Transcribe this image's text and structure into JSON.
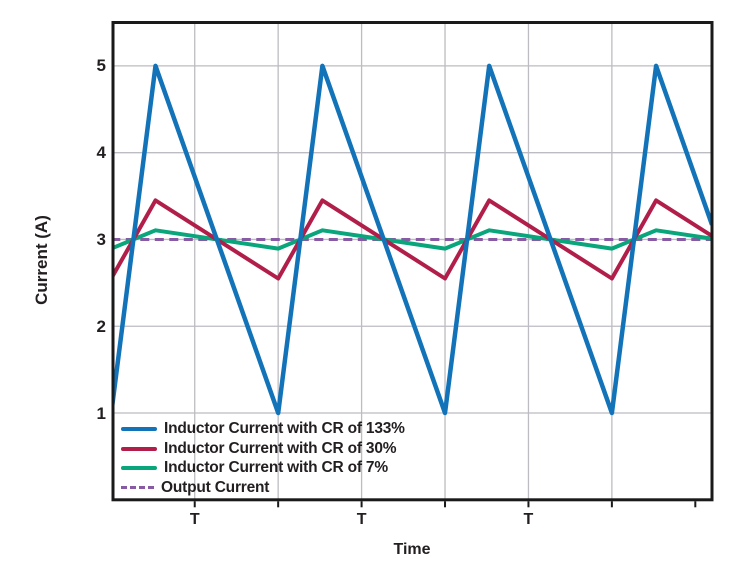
{
  "chart_data": {
    "type": "line",
    "title": "",
    "xlabel": "Time",
    "ylabel": "Current (A)",
    "x_unit": "multiples of switching period T",
    "xlim": [
      0.0102,
      3.6
    ],
    "ylim": [
      0,
      5.5
    ],
    "yticks": [
      1,
      2,
      3,
      4,
      5
    ],
    "x_gridlines_t": [
      0.5,
      1,
      1.5,
      2,
      2.5,
      3
    ],
    "x_axis_ticks_t": [
      0.5,
      1,
      1.5,
      2,
      2.5,
      3,
      3.5
    ],
    "x_tick_labels": [
      {
        "t": 0.5,
        "label": "T"
      },
      {
        "t": 1.5,
        "label": "T"
      },
      {
        "t": 2.5,
        "label": "T"
      }
    ],
    "grid": true,
    "legend_position": "inside-bottom-left",
    "output_current_A": 3,
    "duty_cycle": 0.265,
    "series": [
      {
        "name": "Inductor Current with CR of 133%",
        "color": "#1373B9",
        "style": "solid",
        "width": 4.5,
        "avg_A": 3,
        "min_A": 1.0,
        "max_A": 5.0,
        "ripple_pct": 133,
        "points": [
          [
            0,
            1
          ],
          [
            0.265,
            5
          ],
          [
            1,
            1
          ],
          [
            1.265,
            5
          ],
          [
            2,
            1
          ],
          [
            2.265,
            5
          ],
          [
            3,
            1
          ],
          [
            3.265,
            5
          ],
          [
            3.6,
            3.17
          ]
        ]
      },
      {
        "name": "Inductor Current with CR of 30%",
        "color": "#B01E49",
        "style": "solid",
        "width": 4,
        "avg_A": 3,
        "min_A": 2.55,
        "max_A": 3.45,
        "ripple_pct": 30,
        "points": [
          [
            0,
            2.55
          ],
          [
            0.265,
            3.45
          ],
          [
            1,
            2.55
          ],
          [
            1.265,
            3.45
          ],
          [
            2,
            2.55
          ],
          [
            2.265,
            3.45
          ],
          [
            3,
            2.55
          ],
          [
            3.265,
            3.45
          ],
          [
            3.6,
            3.04
          ]
        ]
      },
      {
        "name": "Inductor Current with CR of 7%",
        "color": "#09A57B",
        "style": "solid",
        "width": 4,
        "avg_A": 3,
        "min_A": 2.895,
        "max_A": 3.105,
        "ripple_pct": 7,
        "points": [
          [
            0,
            2.895
          ],
          [
            0.265,
            3.105
          ],
          [
            1,
            2.895
          ],
          [
            1.265,
            3.105
          ],
          [
            2,
            2.895
          ],
          [
            2.265,
            3.105
          ],
          [
            3,
            2.895
          ],
          [
            3.265,
            3.105
          ],
          [
            3.6,
            3.01
          ]
        ]
      },
      {
        "name": "Output Current",
        "color": "#875AA3",
        "style": "dashed",
        "width": 3,
        "avg_A": 3,
        "min_A": 3,
        "max_A": 3,
        "points": [
          [
            0,
            3
          ],
          [
            3.6,
            3
          ]
        ]
      }
    ]
  },
  "colors": {
    "background": "#FFFFFF",
    "grid": "#BCBCC2",
    "border": "#1A1A1A",
    "text": "#231F20"
  }
}
